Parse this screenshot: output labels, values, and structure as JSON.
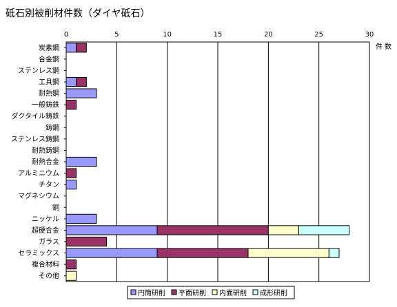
{
  "chart_data": {
    "type": "bar",
    "orientation": "horizontal",
    "stacked": true,
    "title": "砥石別被削材件数（ダイヤ砥石）",
    "xlabel": "件数",
    "xlim": [
      0,
      30
    ],
    "xticks": [
      0,
      5,
      10,
      15,
      20,
      25,
      30
    ],
    "grid": true,
    "legend_position": "bottom",
    "categories": [
      "炭素鋼",
      "合金鋼",
      "ステンレス鋼",
      "工具鋼",
      "耐熱鋼",
      "一般鋳鉄",
      "ダクタイル鋳鉄",
      "鋳鋼",
      "ステンレス鋳鋼",
      "耐熱鋳鋼",
      "耐熱合金",
      "アルミニウム",
      "チタン",
      "マグネシウム",
      "銅",
      "ニッケル",
      "超硬合金",
      "ガラス",
      "セラミックス",
      "複合材料",
      "その他"
    ],
    "series": [
      {
        "name": "円筒研削",
        "color": "#9999ff",
        "values": [
          1,
          0,
          0,
          1,
          3,
          0,
          0,
          0,
          0,
          0,
          3,
          0,
          1,
          0,
          0,
          3,
          9,
          0,
          9,
          0,
          0
        ]
      },
      {
        "name": "平面研削",
        "color": "#993366",
        "values": [
          1,
          0,
          0,
          1,
          0,
          1,
          0,
          0,
          0,
          0,
          0,
          1,
          0,
          0,
          0,
          0,
          11,
          4,
          9,
          1,
          0
        ]
      },
      {
        "name": "内面研削",
        "color": "#ffffcc",
        "values": [
          0,
          0,
          0,
          0,
          0,
          0,
          0,
          0,
          0,
          0,
          0,
          0,
          0,
          0,
          0,
          0,
          3,
          0,
          8,
          0,
          1
        ]
      },
      {
        "name": "成形研削",
        "color": "#ccffff",
        "values": [
          0,
          0,
          0,
          0,
          0,
          0,
          0,
          0,
          0,
          0,
          0,
          0,
          0,
          0,
          0,
          0,
          5,
          0,
          1,
          0,
          0
        ]
      }
    ]
  }
}
